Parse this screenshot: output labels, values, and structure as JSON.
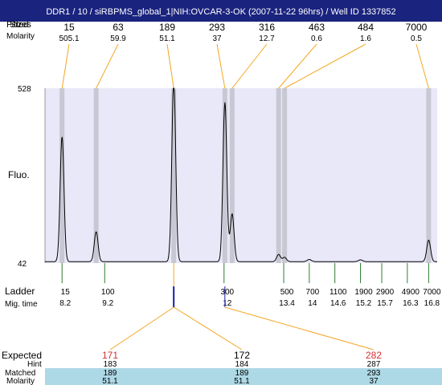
{
  "title": "DDR1 / 10 / siRBPMS_global_1|NIH:OVCAR-3-OK (2007-11-22 96hrs) / Well ID 1337852",
  "colors": {
    "title_bar": "#1a237e",
    "plot_bg": "#e8e8f8",
    "highlight_band": "#c8c8d4",
    "trace": "#000000",
    "callout_line": "#f5a623",
    "ladder_tick": "#2e7d32",
    "marker_blue": "#1a1aa8",
    "expected_red": "#d32f2f",
    "matched_row_bg": "#add8e6"
  },
  "header": {
    "row1_label": "Fitted",
    "row1_label_overlay": "Sizes",
    "row2_label": "Molarity"
  },
  "y_axis_label": "Fluo.",
  "ladder_label": "Ladder",
  "migtime_label": "Mig. time",
  "chart_data": {
    "type": "line",
    "ylim": [
      42,
      528
    ],
    "y_ticks": [
      42,
      528
    ],
    "ylabel": "Fluo.",
    "x_axis": "Mig. time",
    "xlim": [
      7.8,
      17.0
    ],
    "peaks": [
      {
        "size": "15",
        "molarity": "505.1",
        "x": 8.2,
        "height": 347
      },
      {
        "size": "63",
        "molarity": "59.9",
        "x": 9.0,
        "height": 83
      },
      {
        "size": "189",
        "molarity": "51.1",
        "x": 10.82,
        "height": 504
      },
      {
        "size": "293",
        "molarity": "37",
        "x": 12.02,
        "height": 443
      },
      {
        "size": "316",
        "molarity": "12.7",
        "x": 12.19,
        "height": 133
      },
      {
        "size": "463",
        "molarity": "0.6",
        "x": 13.28,
        "height": 20
      },
      {
        "size": "484",
        "molarity": "1.6",
        "x": 13.42,
        "height": 12
      },
      {
        "size": "7000",
        "molarity": "0.5",
        "x": 16.8,
        "height": 60
      }
    ],
    "minor_bumps": [
      {
        "x": 14.0,
        "height": 6
      },
      {
        "x": 15.2,
        "height": 5
      }
    ],
    "ladder": [
      {
        "size": "15",
        "time": "8.2"
      },
      {
        "size": "100",
        "time": "9.2"
      },
      {
        "size": "300",
        "time": "12"
      },
      {
        "size": "500",
        "time": "13.4"
      },
      {
        "size": "700",
        "time": "14"
      },
      {
        "size": "1100",
        "time": "14.6"
      },
      {
        "size": "1900",
        "time": "15.2"
      },
      {
        "size": "2900",
        "time": "15.7"
      },
      {
        "size": "4900",
        "time": "16.3"
      },
      {
        "size": "7000",
        "time": "16.8"
      }
    ],
    "marker_times": [
      10.82,
      12.02
    ]
  },
  "expected_table": {
    "row_labels": {
      "expected": "Expected",
      "hint": "Hint",
      "matched": "Matched",
      "molarity": "Molarity"
    },
    "columns": [
      {
        "expected": "171",
        "hint": "183",
        "matched": "189",
        "molarity": "51.1"
      },
      {
        "expected": "172",
        "hint": "184",
        "matched": "189",
        "molarity": "51.1"
      },
      {
        "expected": "282",
        "hint": "287",
        "matched": "293",
        "molarity": "37"
      }
    ]
  }
}
